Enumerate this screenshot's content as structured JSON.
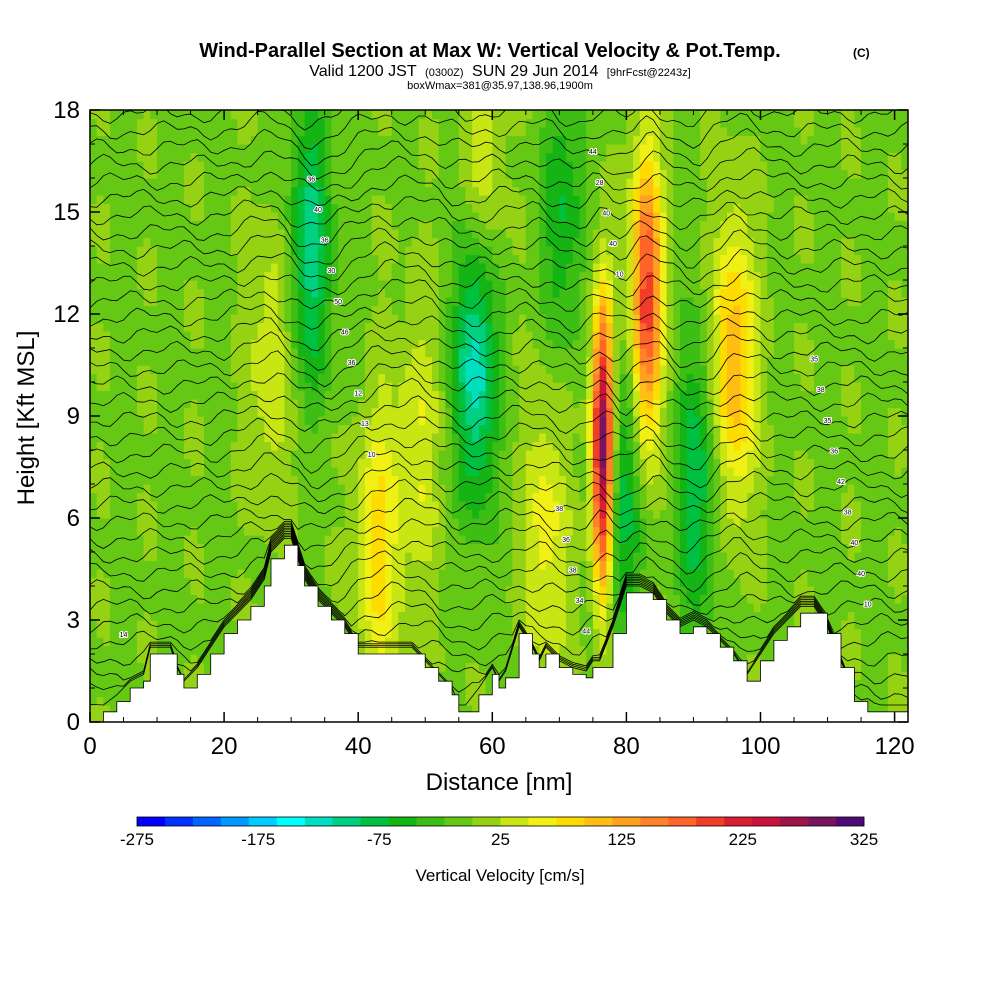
{
  "chart_data": {
    "type": "heatmap",
    "title": "Wind-Parallel Section at Max W: Vertical Velocity & Pot.Temp.",
    "title_suffix": "(C)",
    "subtitle_parts": [
      "Valid 1200 JST",
      "(0300Z)",
      "SUN 29 Jun 2014",
      "[9hrFcst@2243z]"
    ],
    "subtitle2": "boxWmax=381@35.97,138.96,1900m",
    "xlabel": "Distance [nm]",
    "ylabel": "Height [Kft MSL]",
    "xlim": [
      0,
      122
    ],
    "ylim": [
      0,
      18
    ],
    "x_ticks": [
      "0",
      "20",
      "40",
      "60",
      "80",
      "100",
      "120"
    ],
    "y_ticks": [
      "0",
      "3",
      "6",
      "9",
      "12",
      "15",
      "18"
    ],
    "colorbar": {
      "label": "Vertical Velocity [cm/s]",
      "min": -275,
      "max": 325,
      "step": 25,
      "tick_labels": [
        "-275",
        "-175",
        "-75",
        "25",
        "125",
        "225",
        "325"
      ],
      "colors": [
        "#0000ff",
        "#0033ff",
        "#0066ff",
        "#0099ff",
        "#00ccff",
        "#00ffff",
        "#00e0c0",
        "#00d080",
        "#00c040",
        "#14b414",
        "#3cbe14",
        "#64c814",
        "#96d214",
        "#c8e614",
        "#f0f014",
        "#ffdc00",
        "#ffbe14",
        "#ffa01e",
        "#ff8228",
        "#ff6428",
        "#f03c28",
        "#dc1e32",
        "#c8143c",
        "#a0144b",
        "#78145f",
        "#500a78"
      ]
    },
    "terrain_profile": {
      "x": [
        0,
        2,
        4,
        6,
        8,
        9,
        12,
        13,
        14,
        16,
        18,
        20,
        22,
        24,
        26,
        27,
        29,
        30,
        31,
        32,
        34,
        36,
        38,
        40,
        42,
        44,
        46,
        48,
        50,
        52,
        54,
        55,
        56,
        58,
        60,
        61,
        62,
        64,
        66,
        67,
        68,
        70,
        72,
        74,
        75,
        76,
        78,
        80,
        82,
        84,
        86,
        88,
        90,
        92,
        94,
        96,
        98,
        100,
        102,
        104,
        106,
        108,
        110,
        112,
        114,
        116,
        118,
        120,
        122
      ],
      "height": [
        0,
        0.3,
        0.6,
        1.0,
        1.2,
        2.0,
        2.0,
        1.4,
        1.0,
        1.4,
        2.0,
        2.6,
        3.0,
        3.4,
        4.0,
        4.8,
        5.2,
        5.2,
        4.6,
        4.0,
        3.4,
        3.0,
        2.6,
        2.0,
        2.0,
        2.0,
        2.0,
        2.0,
        1.6,
        1.2,
        0.8,
        0.3,
        0.3,
        0.8,
        1.4,
        1.0,
        1.3,
        2.6,
        2.0,
        1.6,
        2.0,
        1.6,
        1.4,
        1.3,
        1.6,
        1.6,
        2.6,
        3.8,
        3.8,
        3.6,
        3.0,
        2.6,
        2.8,
        2.6,
        2.2,
        1.8,
        1.2,
        1.8,
        2.4,
        2.8,
        3.2,
        3.2,
        2.6,
        1.6,
        0.6,
        0.3,
        0.3,
        0.3,
        0.3
      ]
    },
    "updrafts": [
      {
        "x": 76.5,
        "height": 8.0,
        "w": 381
      },
      {
        "x": 83.0,
        "height": 12.5,
        "w": 250
      },
      {
        "x": 96.0,
        "height": 10.5,
        "w": 150
      },
      {
        "x": 43.0,
        "height": 5.0,
        "w": 110
      },
      {
        "x": 68.0,
        "height": 5.5,
        "w": 90
      },
      {
        "x": 58.5,
        "height": 16.5,
        "w": 75
      },
      {
        "x": 27.0,
        "height": 10.5,
        "w": 75
      },
      {
        "x": 49.0,
        "height": 8.0,
        "w": 75
      }
    ],
    "downdrafts": [
      {
        "x": 57.5,
        "height": 10.5,
        "w": -120
      },
      {
        "x": 33.0,
        "height": 14.0,
        "w": -90
      },
      {
        "x": 90.5,
        "height": 7.0,
        "w": -75
      },
      {
        "x": 79.0,
        "height": 6.5,
        "w": -75
      },
      {
        "x": 70.5,
        "height": 15.0,
        "w": -50
      }
    ],
    "contour_labels": [
      "14",
      "10",
      "10",
      "10",
      "13",
      "40",
      "40",
      "12",
      "40",
      "40",
      "36",
      "28",
      "38",
      "46",
      "44",
      "42",
      "50",
      "44",
      "36",
      "30",
      "34",
      "35",
      "36",
      "38",
      "38",
      "40",
      "36",
      "35",
      "36",
      "38"
    ],
    "grid": false
  }
}
